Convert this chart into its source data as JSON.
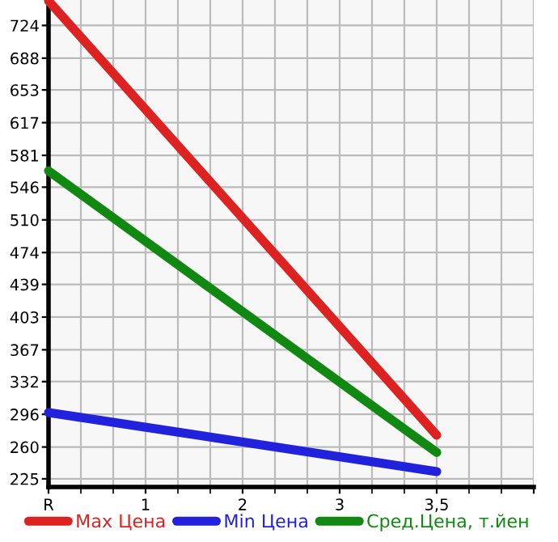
{
  "chart_data": {
    "type": "line",
    "categories": [
      "R",
      "1",
      "2",
      "3",
      "3,5",
      null
    ],
    "series": [
      {
        "name": "Max Цена",
        "color": "#dd2222",
        "values": [
          751,
          null,
          null,
          null,
          273,
          null
        ]
      },
      {
        "name": "Min Цена",
        "color": "#2222dd",
        "values": [
          298,
          null,
          null,
          null,
          233,
          null
        ]
      },
      {
        "name": "Сред.Цена, т.йен",
        "color": "#118811",
        "values": [
          564,
          null,
          null,
          null,
          254,
          null
        ]
      }
    ],
    "ylim": [
      216,
      752
    ],
    "yticks": [
      225,
      260,
      296,
      332,
      367,
      403,
      439,
      474,
      510,
      546,
      581,
      617,
      653,
      688,
      724
    ],
    "grid": true,
    "legend": "bottom",
    "marker": "none",
    "line_style": "solid"
  }
}
